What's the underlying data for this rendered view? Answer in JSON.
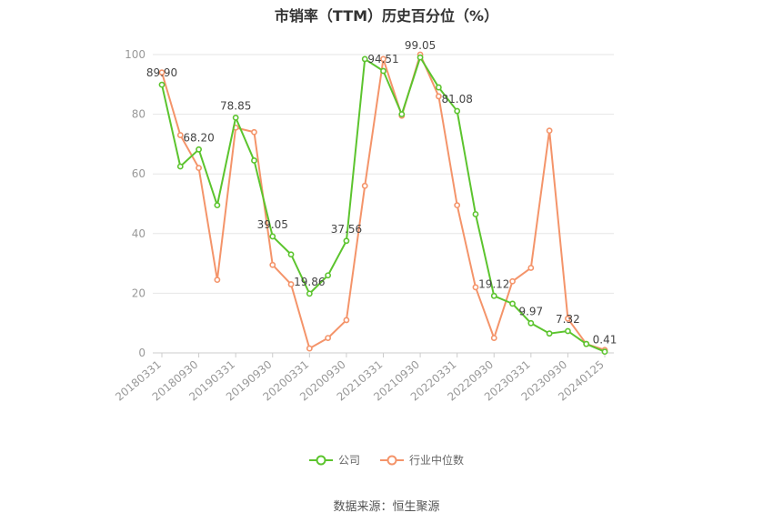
{
  "chart_data": {
    "type": "line",
    "title": "市销率（TTM）历史百分位（%）",
    "x": [
      "20180331",
      "20180630",
      "20180930",
      "20181231",
      "20190331",
      "20190630",
      "20190930",
      "20191231",
      "20200331",
      "20200630",
      "20200930",
      "20201231",
      "20210331",
      "20210630",
      "20210930",
      "20211231",
      "20220331",
      "20220630",
      "20220930",
      "20221231",
      "20230331",
      "20230630",
      "20230930",
      "20231231",
      "20240125"
    ],
    "x_tick_labels": [
      "20180331",
      "20180930",
      "20190331",
      "20190930",
      "20200331",
      "20200930",
      "20210331",
      "20210930",
      "20220331",
      "20220930",
      "20230331",
      "20230930",
      "20240125"
    ],
    "y_ticks": [
      0,
      20,
      40,
      60,
      80,
      100
    ],
    "ylim": [
      0,
      100
    ],
    "grid": true,
    "legend_position": "bottom",
    "series": [
      {
        "name": "公司",
        "color": "#5cc42e",
        "values": [
          89.9,
          62.5,
          68.2,
          49.5,
          78.85,
          64.5,
          39.05,
          33.0,
          19.86,
          26.0,
          37.56,
          98.5,
          94.51,
          80.0,
          99.05,
          89.0,
          81.08,
          46.5,
          19.12,
          16.5,
          9.97,
          6.5,
          7.32,
          3.0,
          0.41
        ],
        "labels": {
          "0": "89.90",
          "2": "68.20",
          "4": "78.85",
          "6": "39.05",
          "8": "19.86",
          "10": "37.56",
          "12": "94.51",
          "14": "99.05",
          "16": "81.08",
          "18": "19.12",
          "20": "9.97",
          "22": "7.32",
          "24": "0.41"
        }
      },
      {
        "name": "行业中位数",
        "color": "#f4946a",
        "values": [
          94.0,
          73.0,
          62.0,
          24.5,
          75.5,
          74.0,
          29.5,
          23.0,
          1.5,
          5.0,
          11.0,
          56.0,
          98.5,
          79.5,
          100.0,
          86.0,
          49.5,
          22.0,
          5.0,
          24.0,
          28.5,
          74.5,
          11.5,
          3.0,
          1.0
        ]
      }
    ]
  },
  "legend": {
    "company": "公司",
    "industry": "行业中位数"
  },
  "source": "数据来源：恒生聚源"
}
